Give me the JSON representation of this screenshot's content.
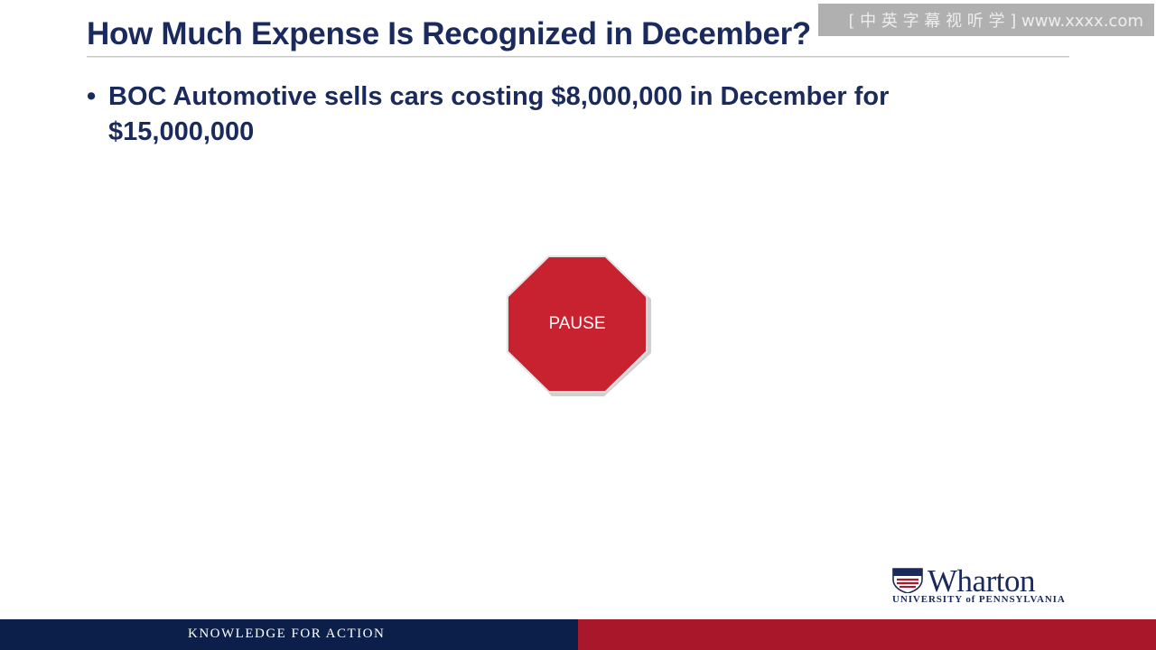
{
  "slide": {
    "title": "How Much Expense Is Recognized in December?",
    "bullets": [
      {
        "text": "BOC Automotive sells cars costing $8,000,000 in December for $15,000,000"
      }
    ]
  },
  "stop_sign": {
    "label": "PAUSE",
    "color": "#c8212f"
  },
  "logo": {
    "name": "Wharton",
    "subtitle": "UNIVERSITY of PENNSYLVANIA"
  },
  "footer": {
    "tagline": "KNOWLEDGE FOR ACTION",
    "left_color": "#0c1f4a",
    "right_color": "#a8182a"
  },
  "watermark": {
    "text": "[ 中 英 字 幕 视 听 学 ] www.xxxx.com"
  },
  "colors": {
    "title": "#1b2a5c",
    "accent_red": "#c8212f"
  }
}
